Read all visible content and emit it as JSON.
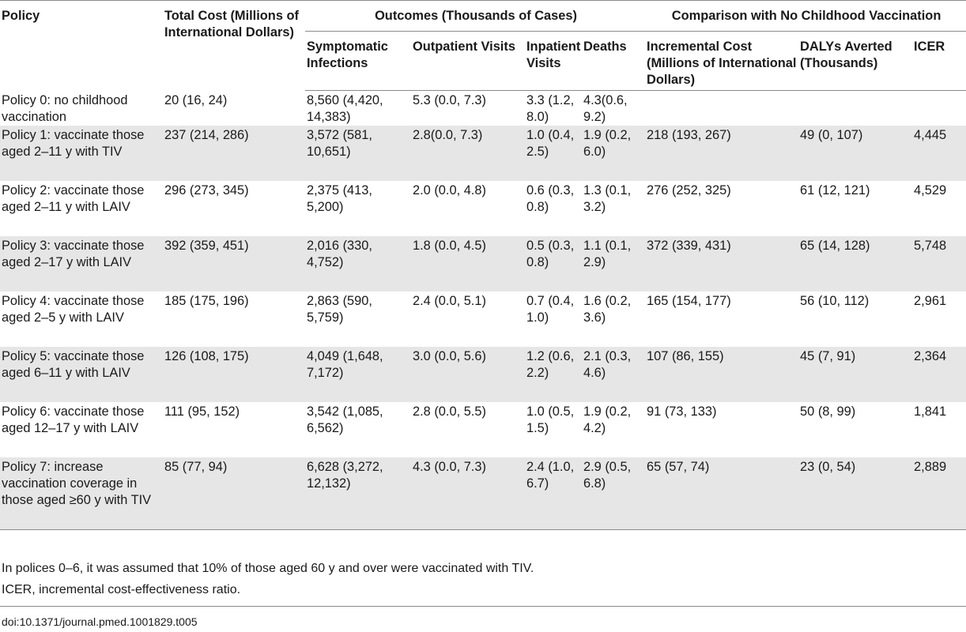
{
  "table": {
    "header": {
      "policy": "Policy",
      "total_cost": "Total Cost (Millions of International Dollars)",
      "outcomes_group": "Outcomes (Thousands of Cases)",
      "comparison_group": "Comparison with No Childhood Vaccination",
      "symptomatic": "Symptomatic Infections",
      "outpatient": "Outpatient Visits",
      "inpatient": "Inpatient Visits",
      "deaths": "Deaths",
      "incremental_cost": "Incremental Cost (Millions of International Dollars)",
      "dalys": "DALYs Averted (Thousands)",
      "icer": "ICER"
    },
    "rows": [
      {
        "policy": "Policy 0: no childhood vaccination",
        "total_cost": "20 (16, 24)",
        "symptomatic": "8,560 (4,420, 14,383)",
        "outpatient": "5.3 (0.0, 7.3)",
        "inpatient": "3.3 (1.2, 8.0)",
        "deaths": "4.3(0.6, 9.2)",
        "incremental_cost": "",
        "dalys": "",
        "icer": ""
      },
      {
        "policy": "Policy 1: vaccinate those aged 2–11 y with TIV",
        "total_cost": "237 (214, 286)",
        "symptomatic": "3,572 (581, 10,651)",
        "outpatient": "2.8(0.0, 7.3)",
        "inpatient": "1.0 (0.4, 2.5)",
        "deaths": "1.9 (0.2, 6.0)",
        "incremental_cost": "218 (193, 267)",
        "dalys": "49 (0, 107)",
        "icer": "4,445"
      },
      {
        "policy": "Policy 2: vaccinate those aged 2–11 y with LAIV",
        "total_cost": "296 (273, 345)",
        "symptomatic": "2,375 (413, 5,200)",
        "outpatient": "2.0 (0.0, 4.8)",
        "inpatient": "0.6 (0.3, 0.8)",
        "deaths": "1.3 (0.1, 3.2)",
        "incremental_cost": "276 (252, 325)",
        "dalys": "61 (12, 121)",
        "icer": "4,529"
      },
      {
        "policy": "Policy 3: vaccinate those aged 2–17 y with LAIV",
        "total_cost": "392 (359, 451)",
        "symptomatic": "2,016 (330, 4,752)",
        "outpatient": "1.8 (0.0, 4.5)",
        "inpatient": "0.5 (0.3, 0.8)",
        "deaths": "1.1 (0.1, 2.9)",
        "incremental_cost": "372 (339, 431)",
        "dalys": "65 (14, 128)",
        "icer": "5,748"
      },
      {
        "policy": "Policy 4: vaccinate those aged 2–5 y with LAIV",
        "total_cost": "185 (175, 196)",
        "symptomatic": "2,863 (590, 5,759)",
        "outpatient": "2.4 (0.0, 5.1)",
        "inpatient": "0.7 (0.4, 1.0)",
        "deaths": "1.6 (0.2, 3.6)",
        "incremental_cost": "165 (154, 177)",
        "dalys": "56 (10, 112)",
        "icer": "2,961"
      },
      {
        "policy": "Policy 5: vaccinate those aged 6–11 y with LAIV",
        "total_cost": "126 (108, 175)",
        "symptomatic": "4,049 (1,648, 7,172)",
        "outpatient": "3.0 (0.0, 5.6)",
        "inpatient": "1.2 (0.6, 2.2)",
        "deaths": "2.1 (0.3, 4.6)",
        "incremental_cost": "107 (86, 155)",
        "dalys": "45 (7, 91)",
        "icer": "2,364"
      },
      {
        "policy": "Policy 6: vaccinate those aged 12–17 y with LAIV",
        "total_cost": "111 (95, 152)",
        "symptomatic": "3,542 (1,085, 6,562)",
        "outpatient": "2.8 (0.0, 5.5)",
        "inpatient": "1.0 (0.5, 1.5)",
        "deaths": "1.9 (0.2, 4.2)",
        "incremental_cost": "91 (73, 133)",
        "dalys": "50 (8, 99)",
        "icer": "1,841"
      },
      {
        "policy": "Policy 7: increase vaccination coverage in those aged ≥60 y with TIV",
        "total_cost": "85 (77, 94)",
        "symptomatic": "6,628 (3,272, 12,132)",
        "outpatient": "4.3 (0.0, 7.3)",
        "inpatient": "2.4 (1.0, 6.7)",
        "deaths": "2.9 (0.5, 6.8)",
        "incremental_cost": "65 (57, 74)",
        "dalys": "23 (0, 54)",
        "icer": "2,889"
      }
    ]
  },
  "footnotes": [
    "In polices 0–6, it was assumed that 10% of those aged 60 y and over were vaccinated with TIV.",
    "ICER, incremental cost-effectiveness ratio."
  ],
  "doi": "doi:10.1371/journal.pmed.1001829.t005"
}
